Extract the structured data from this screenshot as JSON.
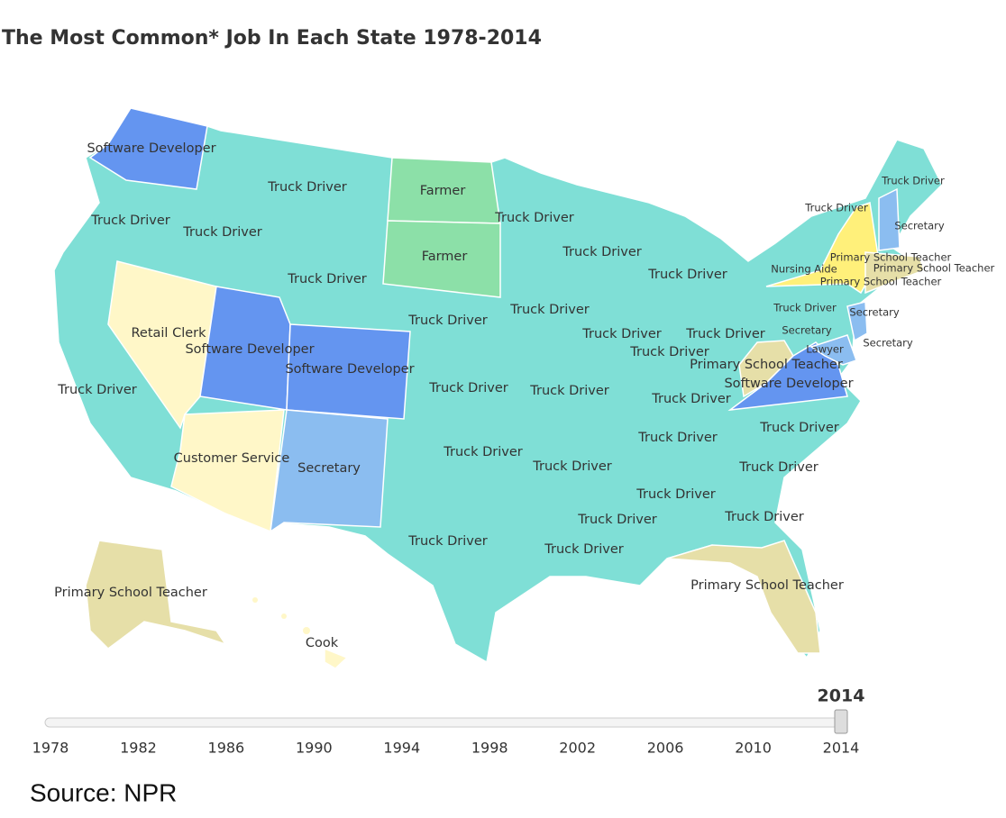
{
  "title": "The Most Common* Job In Each State 1978-2014",
  "states": [
    {
      "label": "Software Developer"
    },
    {
      "label": "Truck Driver"
    },
    {
      "label": "Farmer"
    },
    {
      "label": "Truck Driver"
    },
    {
      "label": "Truck Driver"
    },
    {
      "label": "Truck Driver"
    },
    {
      "label": "Truck Driver"
    },
    {
      "label": "Truck Driver"
    },
    {
      "label": "Farmer"
    },
    {
      "label": "Truck Driver"
    },
    {
      "label": "Truck Driver"
    },
    {
      "label": "Truck Driver"
    },
    {
      "label": "Retail Clerk"
    },
    {
      "label": "Software Developer"
    },
    {
      "label": "Software Developer"
    },
    {
      "label": "Truck Driver"
    },
    {
      "label": "Truck Driver"
    },
    {
      "label": "Truck Driver"
    },
    {
      "label": "Truck Driver"
    },
    {
      "label": "Truck Driver"
    },
    {
      "label": "Truck Driver"
    },
    {
      "label": "Truck Driver"
    },
    {
      "label": "Primary School Teacher"
    },
    {
      "label": "Software Developer"
    },
    {
      "label": "Truck Driver"
    },
    {
      "label": "Truck Driver"
    },
    {
      "label": "Customer Service"
    },
    {
      "label": "Secretary"
    },
    {
      "label": "Truck Driver"
    },
    {
      "label": "Truck Driver"
    },
    {
      "label": "Truck Driver"
    },
    {
      "label": "Truck Driver"
    },
    {
      "label": "Truck Driver"
    },
    {
      "label": "Truck Driver"
    },
    {
      "label": "Truck Driver"
    },
    {
      "label": "Truck Driver"
    },
    {
      "label": "Primary School Teacher"
    },
    {
      "label": "Primary School Teacher"
    },
    {
      "label": "Cook"
    },
    {
      "label": "Truck Driver"
    },
    {
      "label": "Truck Driver"
    },
    {
      "label": "Secretary"
    },
    {
      "label": "Primary School Teacher"
    },
    {
      "label": "Nursing Aide"
    },
    {
      "label": "Primary School Teacher"
    },
    {
      "label": "Primary School Teacher"
    },
    {
      "label": "Truck Driver"
    },
    {
      "label": "Secretary"
    },
    {
      "label": "Secretary"
    },
    {
      "label": "Secretary"
    },
    {
      "label": "Lawyer"
    }
  ],
  "timeline": {
    "selected": "2014",
    "ticks": [
      "1978",
      "1982",
      "1986",
      "1990",
      "1994",
      "1998",
      "2002",
      "2006",
      "2010",
      "2014"
    ]
  },
  "source": "Source: NPR"
}
